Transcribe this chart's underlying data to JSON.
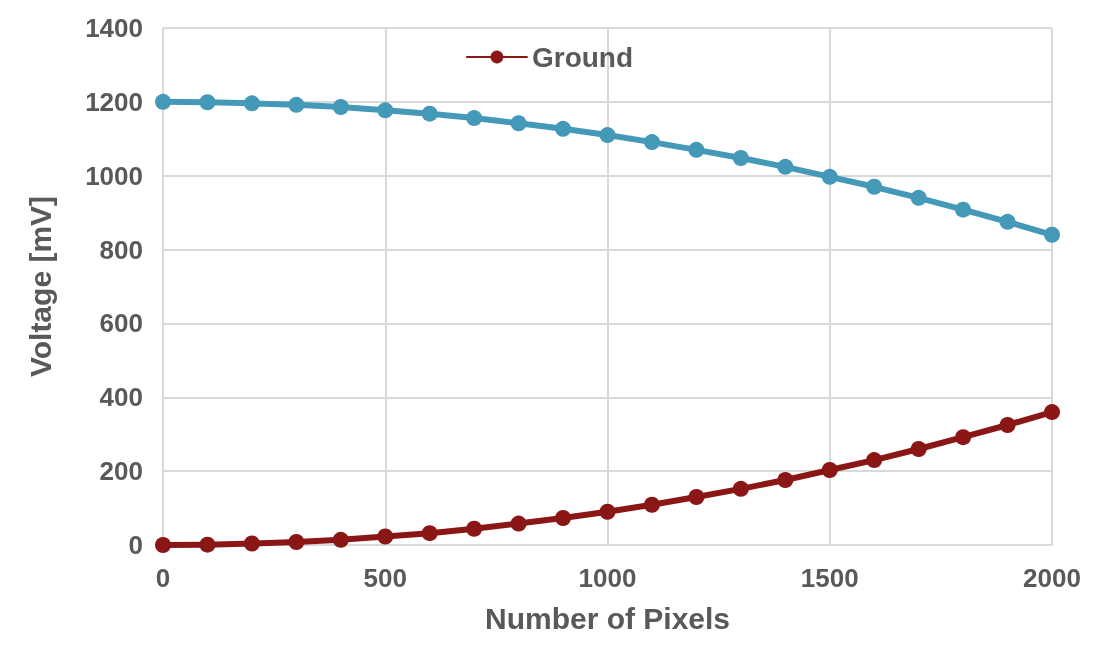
{
  "chart_data": {
    "type": "line",
    "xlabel": "Number of Pixels",
    "ylabel": "Voltage [mV]",
    "x": [
      0,
      100,
      200,
      300,
      400,
      500,
      600,
      700,
      800,
      900,
      1000,
      1100,
      1200,
      1300,
      1400,
      1500,
      1600,
      1700,
      1800,
      1900,
      2000
    ],
    "series": [
      {
        "color": "#4599b8",
        "values": [
          1200,
          1199,
          1196,
          1192,
          1186,
          1177,
          1168,
          1156,
          1142,
          1127,
          1110,
          1091,
          1070,
          1048,
          1024,
          997,
          970,
          940,
          908,
          875,
          840
        ]
      },
      {
        "name": "Ground",
        "color": "#8b1616",
        "values": [
          0,
          1,
          4,
          8,
          14,
          23,
          32,
          44,
          58,
          73,
          90,
          109,
          130,
          152,
          176,
          203,
          230,
          260,
          292,
          325,
          360
        ]
      }
    ],
    "xlim": [
      0,
      2000
    ],
    "xticks": [
      0,
      500,
      1000,
      1500,
      2000
    ],
    "ylim": [
      0,
      1400
    ],
    "yticks": [
      0,
      200,
      400,
      600,
      800,
      1000,
      1200,
      1400
    ],
    "grid": true,
    "legend": "top",
    "marker": "circle",
    "line_style": "solid"
  }
}
